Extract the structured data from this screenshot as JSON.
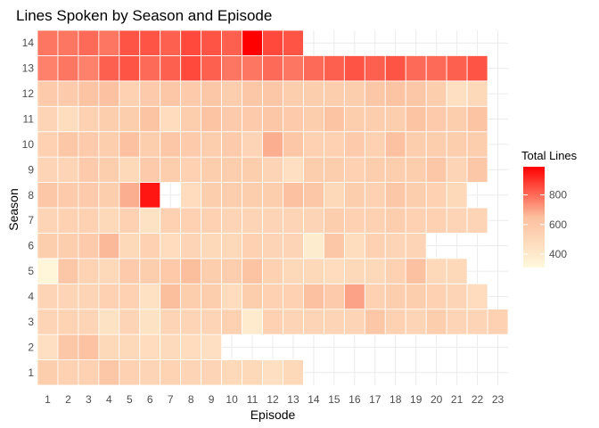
{
  "chart_data": {
    "type": "heatmap",
    "title": "Lines Spoken by Season and Episode",
    "xlabel": "Episode",
    "ylabel": "Season",
    "x_categories": [
      1,
      2,
      3,
      4,
      5,
      6,
      7,
      8,
      9,
      10,
      11,
      12,
      13,
      14,
      15,
      16,
      17,
      18,
      19,
      20,
      21,
      22,
      23
    ],
    "y_categories": [
      1,
      2,
      3,
      4,
      5,
      6,
      7,
      8,
      9,
      10,
      11,
      12,
      13,
      14
    ],
    "legend": {
      "title": "Total Lines",
      "ticks": [
        400,
        600,
        800
      ],
      "range": [
        310,
        990
      ],
      "position": "right"
    },
    "colors": {
      "low": "#fff8dc",
      "mid": "#fcbf9e",
      "high": "#ff0000",
      "grid": "#ebebeb",
      "tile_border": "#ffffff"
    },
    "values": [
      [
        560,
        540,
        540,
        600,
        540,
        520,
        530,
        520,
        520,
        500,
        500,
        460,
        500
      ],
      [
        460,
        600,
        630,
        500,
        500,
        480,
        490,
        480,
        460
      ],
      [
        520,
        530,
        520,
        440,
        520,
        440,
        520,
        520,
        520,
        540,
        390,
        540,
        520,
        520,
        520,
        520,
        600,
        540,
        520,
        560,
        520,
        520,
        540
      ],
      [
        520,
        520,
        520,
        540,
        540,
        450,
        650,
        560,
        560,
        480,
        560,
        540,
        540,
        640,
        580,
        700,
        540,
        560,
        560,
        540,
        520,
        480
      ],
      [
        320,
        600,
        530,
        500,
        580,
        560,
        590,
        650,
        560,
        560,
        620,
        540,
        500,
        500,
        480,
        500,
        500,
        540,
        640,
        500,
        500
      ],
      [
        560,
        560,
        580,
        660,
        500,
        540,
        480,
        520,
        500,
        500,
        540,
        520,
        520,
        380,
        600,
        470,
        540,
        520,
        520
      ],
      [
        520,
        540,
        540,
        500,
        540,
        440,
        540,
        540,
        540,
        520,
        520,
        520,
        520,
        520,
        560,
        540,
        540,
        560,
        540,
        540,
        520,
        520
      ],
      [
        600,
        580,
        580,
        560,
        680,
        950,
        null,
        480,
        560,
        560,
        560,
        560,
        640,
        600,
        500,
        560,
        540,
        600,
        560,
        540,
        500
      ],
      [
        520,
        520,
        580,
        560,
        500,
        580,
        560,
        540,
        560,
        560,
        560,
        520,
        460,
        560,
        560,
        540,
        560,
        560,
        560,
        600,
        520,
        600
      ],
      [
        540,
        600,
        580,
        560,
        640,
        560,
        600,
        580,
        560,
        580,
        520,
        680,
        600,
        540,
        540,
        580,
        540,
        640,
        560,
        560,
        560,
        560
      ],
      [
        520,
        470,
        540,
        560,
        560,
        620,
        480,
        560,
        620,
        580,
        580,
        600,
        580,
        560,
        620,
        560,
        560,
        560,
        620,
        580,
        560,
        620
      ],
      [
        580,
        580,
        620,
        640,
        540,
        580,
        600,
        580,
        600,
        560,
        600,
        600,
        560,
        560,
        560,
        560,
        600,
        620,
        600,
        560,
        460,
        500
      ],
      [
        760,
        780,
        760,
        820,
        840,
        800,
        820,
        860,
        820,
        780,
        780,
        800,
        780,
        800,
        820,
        840,
        820,
        840,
        800,
        800,
        820,
        840
      ],
      [
        780,
        780,
        800,
        780,
        840,
        840,
        820,
        860,
        840,
        820,
        990,
        860,
        840
      ]
    ]
  }
}
